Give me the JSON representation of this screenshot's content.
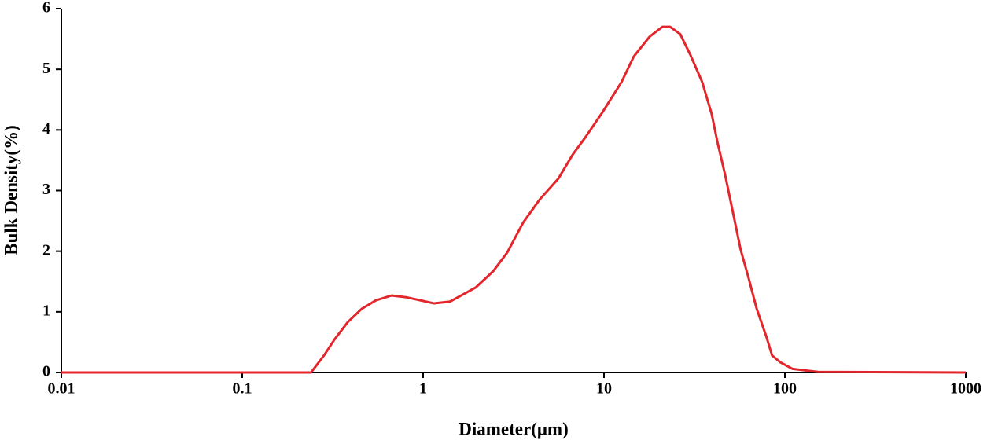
{
  "chart_data": {
    "type": "line",
    "xlabel": "Diameter(μm)",
    "ylabel": "Bulk Density(%)",
    "xscale": "log",
    "x": [
      0.01,
      0.24,
      0.283,
      0.323,
      0.383,
      0.458,
      0.548,
      0.67,
      0.81,
      1.15,
      1.41,
      1.95,
      2.44,
      2.92,
      3.57,
      4.4,
      5.6,
      6.7,
      7.94,
      9.8,
      12.5,
      14.6,
      17.9,
      21.0,
      23.2,
      26.4,
      30.1,
      34.9,
      39.4,
      42.3,
      46.8,
      51.7,
      57.0,
      63.1,
      69.7,
      79.4,
      85.0,
      94.2,
      110,
      152,
      1000
    ],
    "series": [
      {
        "color": "#e3262b",
        "values": [
          0,
          0,
          0.28,
          0.54,
          0.83,
          1.05,
          1.19,
          1.27,
          1.24,
          1.14,
          1.17,
          1.4,
          1.67,
          1.98,
          2.47,
          2.85,
          3.2,
          3.59,
          3.89,
          4.29,
          4.79,
          5.21,
          5.54,
          5.7,
          5.7,
          5.58,
          5.23,
          4.79,
          4.26,
          3.81,
          3.25,
          2.63,
          2.02,
          1.55,
          1.06,
          0.57,
          0.28,
          0.17,
          0.06,
          0.01,
          0
        ]
      }
    ],
    "xlim": [
      0.01,
      1000
    ],
    "xticks": [
      0.01,
      0.1,
      1,
      10,
      100,
      1000
    ],
    "ylim": [
      0,
      6
    ],
    "yticks": [
      0,
      1,
      2,
      3,
      4,
      5,
      6
    ]
  }
}
